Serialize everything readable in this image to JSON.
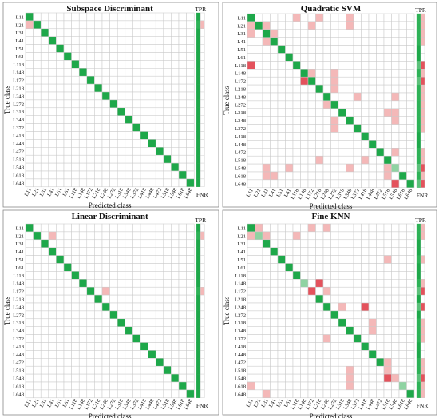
{
  "class_labels": [
    "L11",
    "L21",
    "L31",
    "L41",
    "L51",
    "L61",
    "L118",
    "L148",
    "L172",
    "L218",
    "L248",
    "L272",
    "L318",
    "L348",
    "L372",
    "L418",
    "L448",
    "L472",
    "L518",
    "L548",
    "L618",
    "L648"
  ],
  "colors": {
    "correct": "#1ea84a",
    "error": "#f4b8b8",
    "error_strong": "#e4525c",
    "grid": "#c8c8c8"
  },
  "chart_data": [
    {
      "type": "heatmap",
      "title": "Subspace Discriminant",
      "xlabel": "Predicted class",
      "ylabel": "True class",
      "tpr_label": "TPR",
      "fnr_label": "FNR",
      "off_diagonal": [
        {
          "true": 1,
          "pred": 0,
          "level": 1
        }
      ],
      "weak_diagonal": [],
      "fnr_rows": [
        {
          "row": 1,
          "level": 1
        }
      ]
    },
    {
      "type": "heatmap",
      "title": "Quadratic SVM",
      "xlabel": "Predicted class",
      "ylabel": "True class",
      "tpr_label": "TPR",
      "fnr_label": "FNR",
      "off_diagonal": [
        {
          "true": 0,
          "pred": 6,
          "level": 1
        },
        {
          "true": 0,
          "pred": 9,
          "level": 1
        },
        {
          "true": 0,
          "pred": 13,
          "level": 1
        },
        {
          "true": 1,
          "pred": 0,
          "level": 1
        },
        {
          "true": 1,
          "pred": 2,
          "level": 1
        },
        {
          "true": 1,
          "pred": 8,
          "level": 1
        },
        {
          "true": 1,
          "pred": 13,
          "level": 1
        },
        {
          "true": 2,
          "pred": 0,
          "level": 1
        },
        {
          "true": 2,
          "pred": 3,
          "level": 1
        },
        {
          "true": 3,
          "pred": 2,
          "level": 1
        },
        {
          "true": 6,
          "pred": 0,
          "level": 2
        },
        {
          "true": 7,
          "pred": 8,
          "level": 1
        },
        {
          "true": 7,
          "pred": 11,
          "level": 1
        },
        {
          "true": 8,
          "pred": 7,
          "level": 2
        },
        {
          "true": 8,
          "pred": 11,
          "level": 1
        },
        {
          "true": 9,
          "pred": 11,
          "level": 1
        },
        {
          "true": 10,
          "pred": 14,
          "level": 1
        },
        {
          "true": 10,
          "pred": 19,
          "level": 1
        },
        {
          "true": 11,
          "pred": 10,
          "level": 1
        },
        {
          "true": 12,
          "pred": 18,
          "level": 1
        },
        {
          "true": 12,
          "pred": 19,
          "level": 1
        },
        {
          "true": 13,
          "pred": 11,
          "level": 1
        },
        {
          "true": 13,
          "pred": 19,
          "level": 1
        },
        {
          "true": 14,
          "pred": 11,
          "level": 1
        },
        {
          "true": 17,
          "pred": 19,
          "level": 1
        },
        {
          "true": 18,
          "pred": 9,
          "level": 1
        },
        {
          "true": 18,
          "pred": 15,
          "level": 1
        },
        {
          "true": 19,
          "pred": 2,
          "level": 1
        },
        {
          "true": 19,
          "pred": 5,
          "level": 1
        },
        {
          "true": 19,
          "pred": 13,
          "level": 1
        },
        {
          "true": 19,
          "pred": 18,
          "level": 1
        },
        {
          "true": 20,
          "pred": 2,
          "level": 1
        },
        {
          "true": 20,
          "pred": 3,
          "level": 1
        },
        {
          "true": 20,
          "pred": 18,
          "level": 1
        },
        {
          "true": 21,
          "pred": 19,
          "level": 2
        }
      ],
      "weak_diagonal": [
        19
      ],
      "fnr_rows": [
        {
          "row": 0,
          "level": 1
        },
        {
          "row": 1,
          "level": 1
        },
        {
          "row": 2,
          "level": 1
        },
        {
          "row": 3,
          "level": 1
        },
        {
          "row": 6,
          "level": 2
        },
        {
          "row": 7,
          "level": 1
        },
        {
          "row": 8,
          "level": 2
        },
        {
          "row": 9,
          "level": 1
        },
        {
          "row": 10,
          "level": 1
        },
        {
          "row": 11,
          "level": 1
        },
        {
          "row": 12,
          "level": 1
        },
        {
          "row": 13,
          "level": 1
        },
        {
          "row": 14,
          "level": 1
        },
        {
          "row": 17,
          "level": 1
        },
        {
          "row": 18,
          "level": 1
        },
        {
          "row": 19,
          "level": 2
        },
        {
          "row": 20,
          "level": 1
        },
        {
          "row": 21,
          "level": 2
        }
      ]
    },
    {
      "type": "heatmap",
      "title": "Linear Discriminant",
      "xlabel": "Predicted class",
      "ylabel": "True class",
      "tpr_label": "TPR",
      "fnr_label": "FNR",
      "off_diagonal": [
        {
          "true": 1,
          "pred": 3,
          "level": 1
        },
        {
          "true": 8,
          "pred": 10,
          "level": 1
        }
      ],
      "weak_diagonal": [],
      "fnr_rows": [
        {
          "row": 1,
          "level": 1
        },
        {
          "row": 8,
          "level": 1
        }
      ]
    },
    {
      "type": "heatmap",
      "title": "Fine KNN",
      "xlabel": "Predicted class",
      "ylabel": "True class",
      "tpr_label": "TPR",
      "fnr_label": "FNR",
      "off_diagonal": [
        {
          "true": 0,
          "pred": 1,
          "level": 1
        },
        {
          "true": 0,
          "pred": 8,
          "level": 1
        },
        {
          "true": 0,
          "pred": 10,
          "level": 1
        },
        {
          "true": 1,
          "pred": 0,
          "level": 1
        },
        {
          "true": 1,
          "pred": 2,
          "level": 1
        },
        {
          "true": 1,
          "pred": 6,
          "level": 1
        },
        {
          "true": 4,
          "pred": 18,
          "level": 1
        },
        {
          "true": 7,
          "pred": 9,
          "level": 2
        },
        {
          "true": 8,
          "pred": 8,
          "level": 2
        },
        {
          "true": 8,
          "pred": 10,
          "level": 1
        },
        {
          "true": 10,
          "pred": 12,
          "level": 1
        },
        {
          "true": 10,
          "pred": 15,
          "level": 2
        },
        {
          "true": 12,
          "pred": 16,
          "level": 1
        },
        {
          "true": 13,
          "pred": 16,
          "level": 1
        },
        {
          "true": 14,
          "pred": 10,
          "level": 1
        },
        {
          "true": 17,
          "pred": 18,
          "level": 1
        },
        {
          "true": 18,
          "pred": 13,
          "level": 1
        },
        {
          "true": 18,
          "pred": 18,
          "level": 1
        },
        {
          "true": 19,
          "pred": 13,
          "level": 1
        },
        {
          "true": 19,
          "pred": 18,
          "level": 2
        },
        {
          "true": 19,
          "pred": 19,
          "level": 1
        },
        {
          "true": 20,
          "pred": 0,
          "level": 1
        },
        {
          "true": 20,
          "pred": 13,
          "level": 1
        },
        {
          "true": 21,
          "pred": 2,
          "level": 1
        }
      ],
      "weak_diagonal": [
        1,
        7,
        8,
        19,
        20
      ],
      "fnr_rows": [
        {
          "row": 0,
          "level": 1
        },
        {
          "row": 1,
          "level": 1
        },
        {
          "row": 4,
          "level": 1
        },
        {
          "row": 7,
          "level": 1
        },
        {
          "row": 8,
          "level": 2
        },
        {
          "row": 10,
          "level": 2
        },
        {
          "row": 12,
          "level": 1
        },
        {
          "row": 13,
          "level": 1
        },
        {
          "row": 14,
          "level": 1
        },
        {
          "row": 17,
          "level": 1
        },
        {
          "row": 18,
          "level": 1
        },
        {
          "row": 19,
          "level": 2
        },
        {
          "row": 20,
          "level": 1
        },
        {
          "row": 21,
          "level": 1
        }
      ]
    }
  ]
}
